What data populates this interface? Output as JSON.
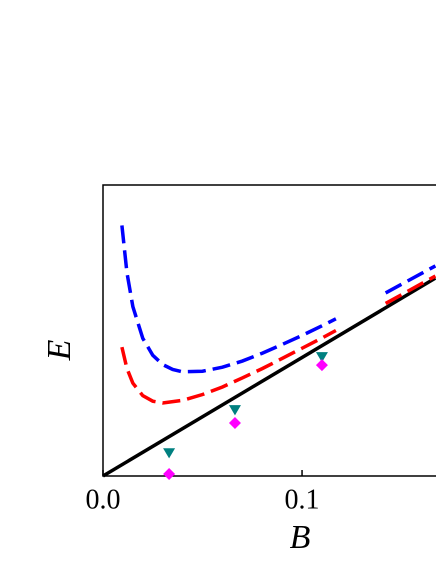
{
  "chart_data": {
    "type": "line",
    "xlabel": "B",
    "ylabel": "E",
    "xlim": [
      0,
      0.1673
    ],
    "ylim": [
      0,
      1
    ],
    "xticks": [
      {
        "value": 0,
        "label": "0.0"
      },
      0.1
    ],
    "series": [
      {
        "color": "#000000",
        "dash": false,
        "marker": null,
        "x": [
          0,
          0.167
        ],
        "values": [
          0,
          0.68
        ]
      },
      {
        "color": "#0000ff",
        "dash": true,
        "marker": null,
        "x": [
          0.0095,
          0.012,
          0.015,
          0.02,
          0.025,
          0.03,
          0.035,
          0.04,
          0.05,
          0.06,
          0.07,
          0.08,
          0.09,
          0.1,
          0.11,
          0.117,
          0.13,
          0.142,
          0.15,
          0.16,
          0.167
        ],
        "values": [
          0.861,
          0.7,
          0.582,
          0.473,
          0.415,
          0.383,
          0.366,
          0.358,
          0.36,
          0.374,
          0.395,
          0.422,
          0.452,
          0.483,
          0.516,
          0.54,
          null,
          0.629,
          0.659,
          0.696,
          0.722
        ]
      },
      {
        "color": "#ff0000",
        "dash": true,
        "marker": null,
        "x": [
          0.0095,
          0.012,
          0.015,
          0.02,
          0.025,
          0.03,
          0.04,
          0.05,
          0.06,
          0.07,
          0.08,
          0.09,
          0.1,
          0.11,
          0.117,
          0.13,
          0.142,
          0.15,
          0.16,
          0.167
        ],
        "values": [
          0.443,
          0.37,
          0.319,
          0.276,
          0.257,
          0.251,
          0.26,
          0.28,
          0.306,
          0.337,
          0.369,
          0.404,
          0.439,
          0.474,
          0.5,
          null,
          0.593,
          0.623,
          0.661,
          0.687
        ]
      },
      {
        "color": "#008080",
        "dash": false,
        "marker": "triangle-down",
        "x": [
          0.0332,
          0.0663,
          0.11
        ],
        "values": [
          0.079,
          0.227,
          0.409
        ]
      },
      {
        "color": "#ff00ff",
        "dash": false,
        "marker": "diamond",
        "x": [
          0.0332,
          0.0663,
          0.11
        ],
        "values": [
          0.007,
          0.182,
          0.381
        ]
      }
    ]
  }
}
